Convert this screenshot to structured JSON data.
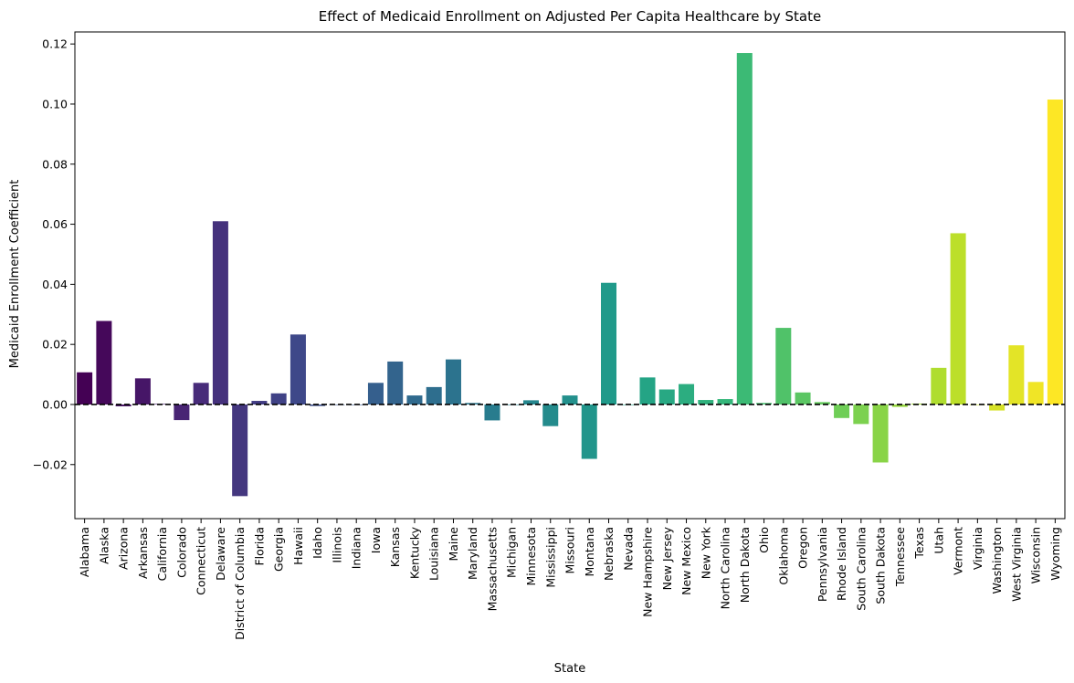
{
  "chart_data": {
    "type": "bar",
    "title": "Effect of Medicaid Enrollment on Adjusted Per Capita Healthcare by State",
    "xlabel": "State",
    "ylabel": "Medicaid Enrollment Coefficient",
    "ylim": [
      -0.038,
      0.124
    ],
    "yticks": [
      -0.02,
      0.0,
      0.02,
      0.04,
      0.06,
      0.08,
      0.1,
      0.12
    ],
    "ytick_labels": [
      "−0.02",
      "0.00",
      "0.02",
      "0.04",
      "0.06",
      "0.08",
      "0.10",
      "0.12"
    ],
    "grid": false,
    "reference_line": {
      "y": 0.0,
      "style": "dashed",
      "color": "#000000"
    },
    "colormap": "viridis",
    "categories": [
      "Alabama",
      "Alaska",
      "Arizona",
      "Arkansas",
      "California",
      "Colorado",
      "Connecticut",
      "Delaware",
      "District of Columbia",
      "Florida",
      "Georgia",
      "Hawaii",
      "Idaho",
      "Illinois",
      "Indiana",
      "Iowa",
      "Kansas",
      "Kentucky",
      "Louisiana",
      "Maine",
      "Maryland",
      "Massachusetts",
      "Michigan",
      "Minnesota",
      "Mississippi",
      "Missouri",
      "Montana",
      "Nebraska",
      "Nevada",
      "New Hampshire",
      "New Jersey",
      "New Mexico",
      "New York",
      "North Carolina",
      "North Dakota",
      "Ohio",
      "Oklahoma",
      "Oregon",
      "Pennsylvania",
      "Rhode Island",
      "South Carolina",
      "South Dakota",
      "Tennessee",
      "Texas",
      "Utah",
      "Vermont",
      "Virginia",
      "Washington",
      "West Virginia",
      "Wisconsin",
      "Wyoming"
    ],
    "values": [
      0.0107,
      0.0278,
      -0.0006,
      0.0087,
      0.0002,
      -0.0052,
      0.0072,
      0.061,
      -0.0305,
      0.0012,
      0.0037,
      0.0233,
      -0.0005,
      0.0,
      0.0,
      0.0072,
      0.0143,
      0.003,
      0.0058,
      0.015,
      0.0005,
      -0.0053,
      0.0,
      0.0014,
      -0.0072,
      0.003,
      -0.0181,
      0.0405,
      0.0,
      0.009,
      0.005,
      0.0068,
      0.0015,
      0.0018,
      0.117,
      0.0005,
      0.0255,
      0.004,
      0.0008,
      -0.0045,
      -0.0065,
      -0.0193,
      -0.0008,
      0.0003,
      0.0122,
      0.057,
      0.0,
      -0.002,
      0.0197,
      0.0075,
      0.1015
    ]
  }
}
